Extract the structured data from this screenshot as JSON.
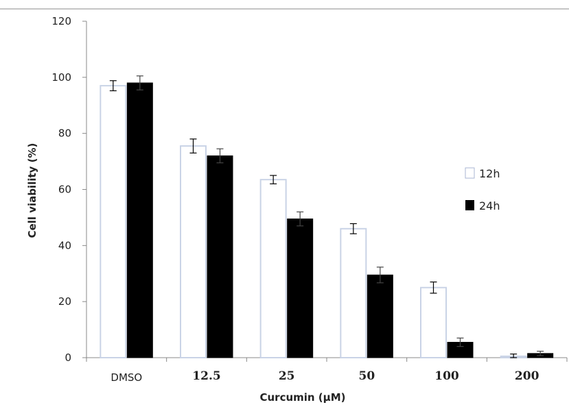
{
  "chart_data": {
    "type": "bar",
    "title": "",
    "xlabel": "Curcumin (μM)",
    "ylabel": "Cell viability (%)",
    "ylim": [
      0,
      120
    ],
    "yticks": [
      "0",
      "20",
      "40",
      "60",
      "80",
      "100",
      "120"
    ],
    "categories": [
      "DMSO",
      "12.5",
      "25",
      "50",
      "100",
      "200"
    ],
    "series": [
      {
        "name": "12h",
        "color": "#ffffff",
        "stroke": "#c9d3e6",
        "values": [
          97,
          75.5,
          63.5,
          46,
          25,
          0.5
        ],
        "errors": [
          1.8,
          2.5,
          1.5,
          1.8,
          2,
          0.8
        ]
      },
      {
        "name": "24h",
        "color": "#000000",
        "stroke": "#000000",
        "values": [
          98,
          72,
          49.5,
          29.5,
          5.5,
          1.5
        ],
        "errors": [
          2.5,
          2.5,
          2.5,
          2.8,
          1.5,
          0.8
        ]
      }
    ],
    "legend": "right",
    "grid": false
  }
}
